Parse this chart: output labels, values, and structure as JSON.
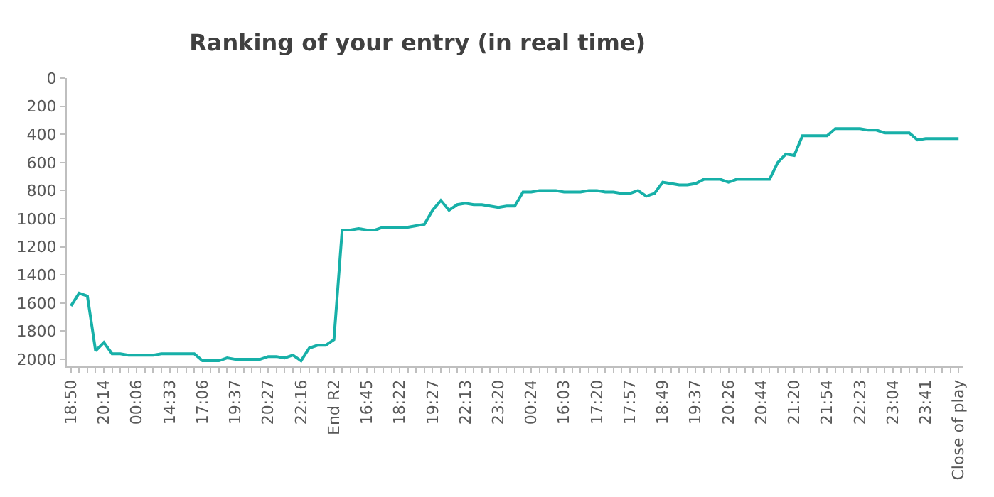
{
  "chart_data": {
    "type": "line",
    "title": "Ranking of your entry (in real time)",
    "categories": [
      "18:50",
      null,
      null,
      null,
      "20:14",
      null,
      null,
      null,
      "00:06",
      null,
      null,
      null,
      "14:33",
      null,
      null,
      null,
      "17:06",
      null,
      null,
      null,
      "19:37",
      null,
      null,
      null,
      "20:27",
      null,
      null,
      null,
      "22:16",
      null,
      null,
      null,
      "End R2",
      null,
      null,
      null,
      "16:45",
      null,
      null,
      null,
      "18:22",
      null,
      null,
      null,
      "19:27",
      null,
      null,
      null,
      "22:13",
      null,
      null,
      null,
      "23:20",
      null,
      null,
      null,
      "00:24",
      null,
      null,
      null,
      "16:03",
      null,
      null,
      null,
      "17:20",
      null,
      null,
      null,
      "17:57",
      null,
      null,
      null,
      "18:49",
      null,
      null,
      null,
      "19:37",
      null,
      null,
      null,
      "20:26",
      null,
      null,
      null,
      "20:44",
      null,
      null,
      null,
      "21:20",
      null,
      null,
      null,
      "21:54",
      null,
      null,
      null,
      "22:23",
      null,
      null,
      null,
      "23:04",
      null,
      null,
      null,
      "23:41",
      null,
      null,
      null,
      "Close of play"
    ],
    "series": [
      {
        "color": "#17b0a8",
        "values": [
          1620,
          1530,
          1550,
          1940,
          1880,
          1960,
          1960,
          1970,
          1970,
          1970,
          1970,
          1960,
          1960,
          1960,
          1960,
          1960,
          2010,
          2010,
          2010,
          1990,
          2000,
          2000,
          2000,
          2000,
          1980,
          1980,
          1990,
          1970,
          2010,
          1920,
          1900,
          1900,
          1860,
          1080,
          1080,
          1070,
          1080,
          1080,
          1060,
          1060,
          1060,
          1060,
          1050,
          1040,
          940,
          870,
          940,
          900,
          890,
          900,
          900,
          910,
          920,
          910,
          910,
          810,
          810,
          800,
          800,
          800,
          810,
          810,
          810,
          800,
          800,
          810,
          810,
          820,
          820,
          800,
          840,
          820,
          740,
          750,
          760,
          760,
          750,
          720,
          720,
          720,
          740,
          720,
          720,
          720,
          720,
          720,
          600,
          540,
          550,
          410,
          410,
          410,
          410,
          360,
          360,
          360,
          360,
          370,
          370,
          390,
          390,
          390,
          390,
          440,
          430,
          430,
          430,
          430,
          430
        ]
      }
    ],
    "ylim": [
      2050,
      0
    ],
    "yticks": [
      0,
      200,
      400,
      600,
      800,
      1000,
      1200,
      1400,
      1600,
      1800,
      2000
    ],
    "legend": false,
    "marker": "none",
    "line_style": "solid"
  }
}
